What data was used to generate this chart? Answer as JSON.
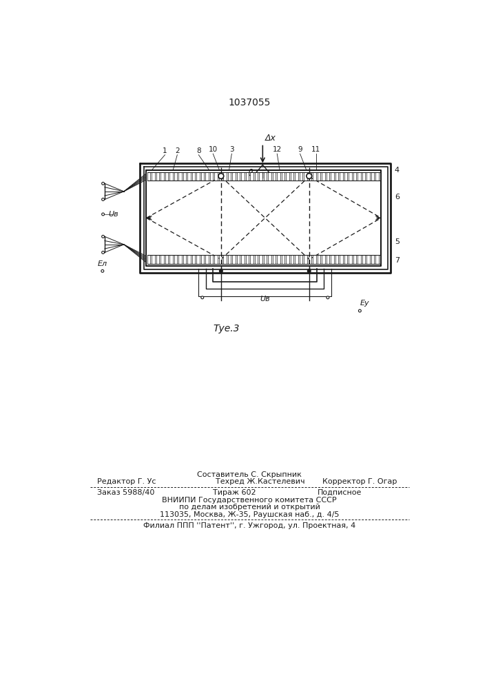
{
  "title": "1037055",
  "fig_caption": "Τуе.3",
  "line_color": "#1a1a1a",
  "footer": {
    "line1_center": "Составитель С. Скрыпник",
    "line2_left": "Редактор Г. Ус",
    "line2_center": "Техред Ж.Кастелевич",
    "line2_right": "Корректор Г. Огар",
    "line3_left": "Заказ 5988/40",
    "line3_center": "Тираж 602",
    "line3_right": "Подписное",
    "line4": "ВНИИПИ Государственного комитета СССР",
    "line5": "по делам изобретений и открытий",
    "line6": "113035, Москва, Ж-35, Раушская наб., д. 4/5",
    "line7": "Филиал ППП ''Патент'', г. Ужгород, ул. Проектная, 4"
  }
}
